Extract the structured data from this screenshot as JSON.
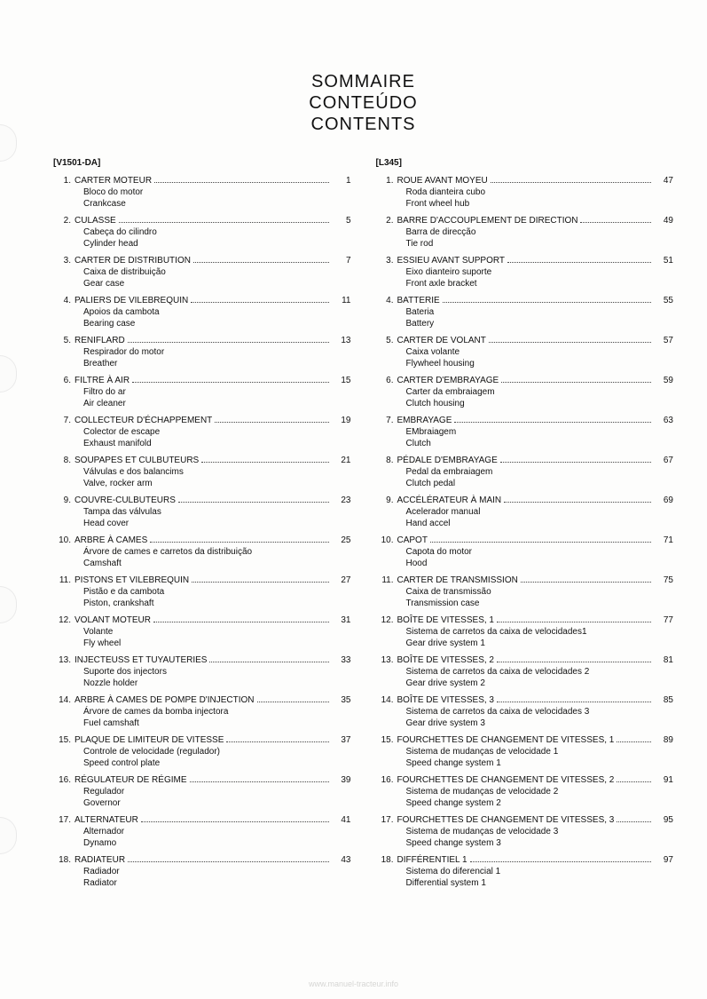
{
  "title": {
    "fr": "SOMMAIRE",
    "pt": "CONTEÚDO",
    "en": "CONTENTS"
  },
  "watermark": "www.manuel-tracteur.info",
  "left": {
    "header": "[V1501-DA]",
    "items": [
      {
        "n": "1.",
        "fr": "CARTER MOTEUR",
        "pt": "Bloco do motor",
        "en": "Crankcase",
        "page": "1"
      },
      {
        "n": "2.",
        "fr": "CULASSE",
        "pt": "Cabeça do cilindro",
        "en": "Cylinder head",
        "page": "5"
      },
      {
        "n": "3.",
        "fr": "CARTER DE DISTRIBUTION",
        "pt": "Caixa de distribuição",
        "en": "Gear case",
        "page": "7"
      },
      {
        "n": "4.",
        "fr": "PALIERS DE VILEBREQUIN",
        "pt": "Apoios da cambota",
        "en": "Bearing case",
        "page": "11"
      },
      {
        "n": "5.",
        "fr": "RENIFLARD",
        "pt": "Respirador do motor",
        "en": "Breather",
        "page": "13"
      },
      {
        "n": "6.",
        "fr": "FILTRE À AIR",
        "pt": "Filtro do ar",
        "en": "Air cleaner",
        "page": "15"
      },
      {
        "n": "7.",
        "fr": "COLLECTEUR D'ÉCHAPPEMENT",
        "pt": "Colector de escape",
        "en": "Exhaust manifold",
        "page": "19"
      },
      {
        "n": "8.",
        "fr": "SOUPAPES ET CULBUTEURS",
        "pt": "Válvulas e dos balancims",
        "en": "Valve, rocker arm",
        "page": "21"
      },
      {
        "n": "9.",
        "fr": "COUVRE-CULBUTEURS",
        "pt": "Tampa das válvulas",
        "en": "Head cover",
        "page": "23"
      },
      {
        "n": "10.",
        "fr": "ARBRE À CAMES",
        "pt": "Árvore de cames e carretos da distribuição",
        "en": "Camshaft",
        "page": "25"
      },
      {
        "n": "11.",
        "fr": "PISTONS ET VILEBREQUIN",
        "pt": "Pistão e da cambota",
        "en": "Piston, crankshaft",
        "page": "27"
      },
      {
        "n": "12.",
        "fr": "VOLANT MOTEUR",
        "pt": "Volante",
        "en": "Fly wheel",
        "page": "31"
      },
      {
        "n": "13.",
        "fr": "INJECTEUSS ET TUYAUTERIES",
        "pt": "Suporte dos injectors",
        "en": "Nozzle holder",
        "page": "33"
      },
      {
        "n": "14.",
        "fr": "ARBRE À CAMES DE POMPE D'INJECTION",
        "pt": "Árvore de cames da bomba injectora",
        "en": "Fuel camshaft",
        "page": "35"
      },
      {
        "n": "15.",
        "fr": "PLAQUE DE LIMITEUR DE VITESSE",
        "pt": "Controle de velocidade (regulador)",
        "en": "Speed control plate",
        "page": "37"
      },
      {
        "n": "16.",
        "fr": "RÉGULATEUR DE RÉGIME",
        "pt": "Regulador",
        "en": "Governor",
        "page": "39"
      },
      {
        "n": "17.",
        "fr": "ALTERNATEUR",
        "pt": "Alternador",
        "en": "Dynamo",
        "page": "41"
      },
      {
        "n": "18.",
        "fr": "RADIATEUR",
        "pt": "Radiador",
        "en": "Radiator",
        "page": "43"
      }
    ]
  },
  "right": {
    "header": "[L345]",
    "items": [
      {
        "n": "1.",
        "fr": "ROUE AVANT MOYEU",
        "pt": "Roda dianteira cubo",
        "en": "Front wheel hub",
        "page": "47"
      },
      {
        "n": "2.",
        "fr": "BARRE D'ACCOUPLEMENT DE DIRECTION",
        "pt": "Barra de direcção",
        "en": "Tie rod",
        "page": "49"
      },
      {
        "n": "3.",
        "fr": "ESSIEU AVANT SUPPORT",
        "pt": "Eixo dianteiro suporte",
        "en": "Front axle bracket",
        "page": "51"
      },
      {
        "n": "4.",
        "fr": "BATTERIE",
        "pt": "Bateria",
        "en": "Battery",
        "page": "55"
      },
      {
        "n": "5.",
        "fr": "CARTER DE VOLANT",
        "pt": "Caixa volante",
        "en": "Flywheel housing",
        "page": "57"
      },
      {
        "n": "6.",
        "fr": "CARTER D'EMBRAYAGE",
        "pt": "Carter da embraiagem",
        "en": "Clutch housing",
        "page": "59"
      },
      {
        "n": "7.",
        "fr": "EMBRAYAGE",
        "pt": "EMbraiagem",
        "en": "Clutch",
        "page": "63"
      },
      {
        "n": "8.",
        "fr": "PÉDALE D'EMBRAYAGE",
        "pt": "Pedal da embraiagem",
        "en": "Clutch pedal",
        "page": "67"
      },
      {
        "n": "9.",
        "fr": "ACCÉLÉRATEUR À MAIN",
        "pt": "Acelerador manual",
        "en": "Hand accel",
        "page": "69"
      },
      {
        "n": "10.",
        "fr": "CAPOT",
        "pt": "Capota do motor",
        "en": "Hood",
        "page": "71"
      },
      {
        "n": "11.",
        "fr": "CARTER DE TRANSMISSION",
        "pt": "Caixa de transmissão",
        "en": "Transmission case",
        "page": "75"
      },
      {
        "n": "12.",
        "fr": "BOÎTE DE VITESSES, 1",
        "pt": "Sistema de carretos da caixa de velocidades1",
        "en": "Gear drive system 1",
        "page": "77"
      },
      {
        "n": "13.",
        "fr": "BOÎTE DE VITESSES, 2",
        "pt": "Sistema de carretos da caixa de velocidades 2",
        "en": "Gear drive system 2",
        "page": "81"
      },
      {
        "n": "14.",
        "fr": "BOÎTE DE VITESSES, 3",
        "pt": "Sistema de carretos da caixa de velocidades 3",
        "en": "Gear drive system  3",
        "page": "85"
      },
      {
        "n": "15.",
        "fr": "FOURCHETTES DE CHANGEMENT DE VITESSES, 1",
        "pt": "Sistema de mudanças de velocidade 1",
        "en": "Speed change system 1",
        "page": "89"
      },
      {
        "n": "16.",
        "fr": "FOURCHETTES DE CHANGEMENT DE VITESSES, 2",
        "pt": "Sistema de mudanças de velocidade 2",
        "en": "Speed change system 2",
        "page": "91"
      },
      {
        "n": "17.",
        "fr": "FOURCHETTES DE CHANGEMENT DE VITESSES, 3",
        "pt": "Sistema de mudanças de velocidade 3",
        "en": "Speed change system 3",
        "page": "95"
      },
      {
        "n": "18.",
        "fr": "DIFFÉRENTIEL 1",
        "pt": "Sistema do diferencial 1",
        "en": "Differential system 1",
        "page": "97"
      }
    ]
  }
}
